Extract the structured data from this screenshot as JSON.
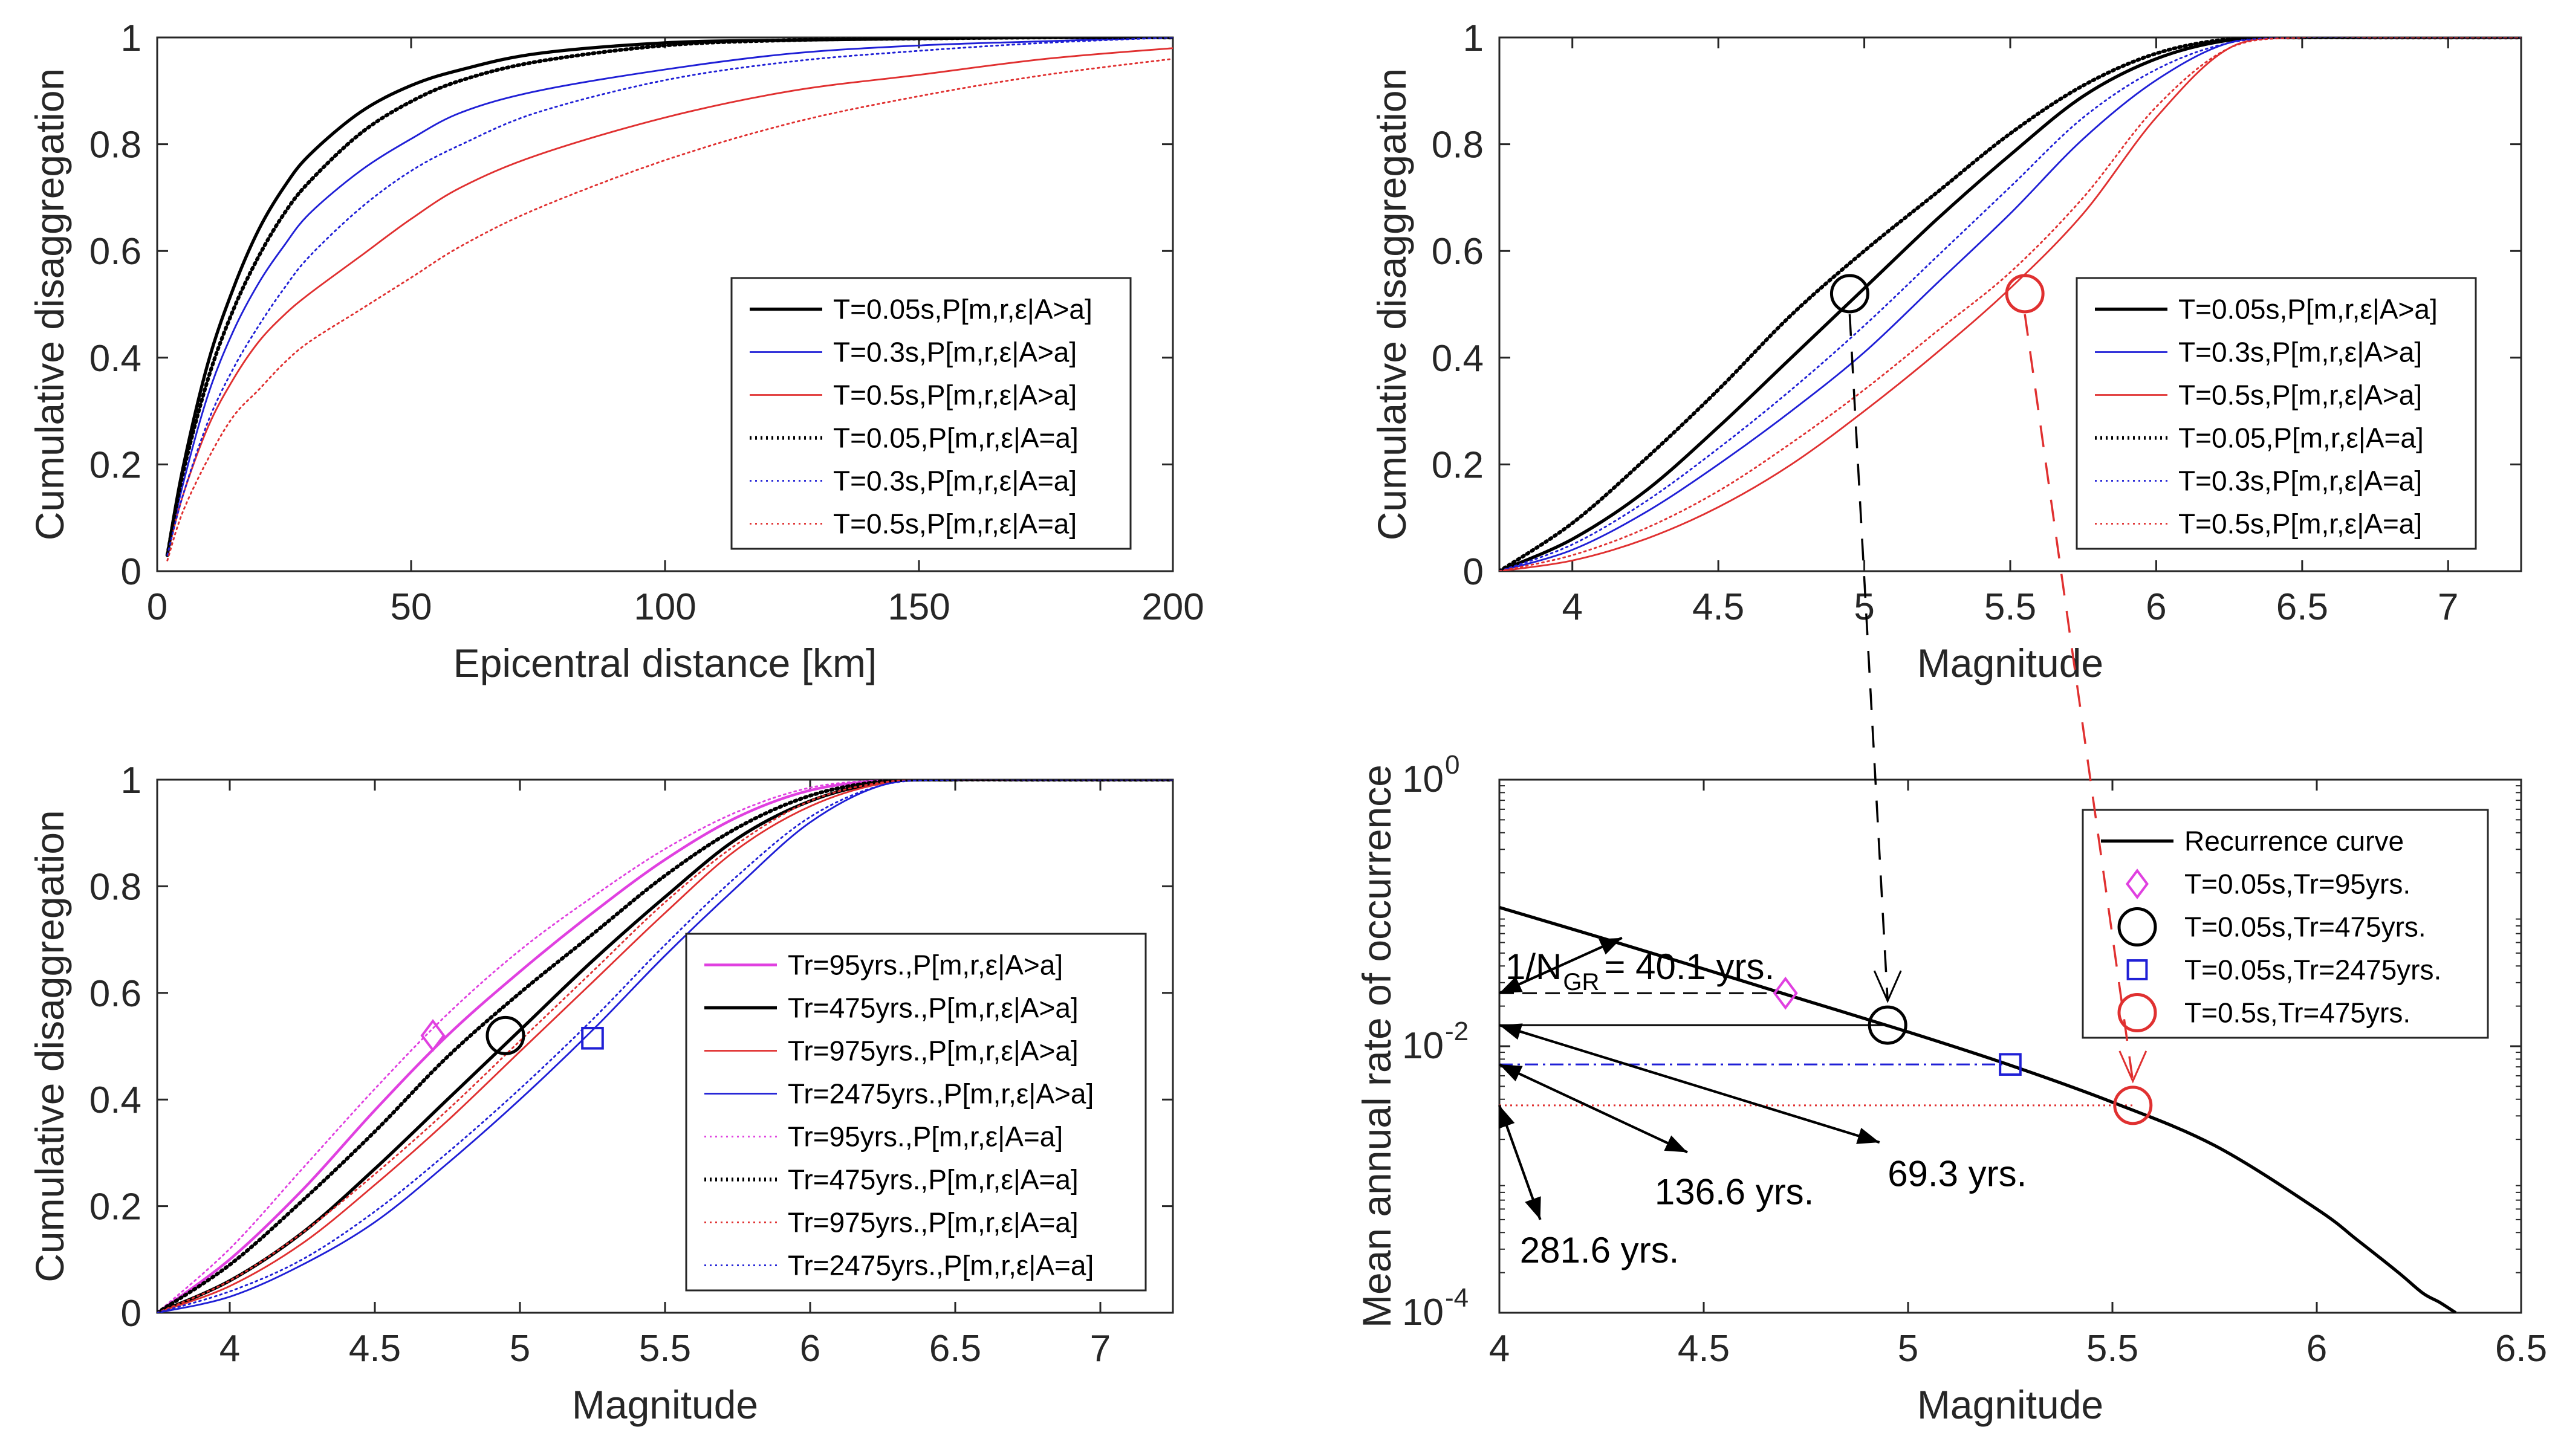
{
  "colors": {
    "black": "#000000",
    "blue": "#1f1fd6",
    "red": "#e03030",
    "magenta": "#e040e0",
    "grid": "#ffffff"
  },
  "chart_data": [
    {
      "type": "line",
      "xlabel": "Epicentral distance [km]",
      "ylabel": "Cumulative disaggregation",
      "xlim": [
        0,
        200
      ],
      "ylim": [
        0,
        1
      ],
      "xticks": [
        "0",
        "50",
        "100",
        "150",
        "200"
      ],
      "yticks": [
        "0",
        "0.2",
        "0.4",
        "0.6",
        "0.8",
        "1"
      ],
      "legend_position": "center-right",
      "x": [
        2,
        5,
        10,
        15,
        20,
        25,
        30,
        40,
        50,
        60,
        75,
        100,
        125,
        150,
        175,
        200
      ],
      "series": [
        {
          "name": "T=0.05s,P[m,r,ε|A>a]",
          "color": "#000000",
          "style": "solid",
          "width": 2.4,
          "values": [
            0.03,
            0.19,
            0.39,
            0.53,
            0.64,
            0.72,
            0.78,
            0.86,
            0.91,
            0.94,
            0.97,
            0.99,
            0.995,
            0.998,
            1.0,
            1.0
          ]
        },
        {
          "name": "T=0.3s,P[m,r,ε|A>a]",
          "color": "#1f1fd6",
          "style": "solid",
          "width": 1.3,
          "values": [
            0.03,
            0.16,
            0.33,
            0.45,
            0.54,
            0.61,
            0.67,
            0.75,
            0.81,
            0.86,
            0.9,
            0.94,
            0.97,
            0.985,
            0.993,
            1.0
          ]
        },
        {
          "name": "T=0.5s,P[m,r,ε|A>a]",
          "color": "#e03030",
          "style": "solid",
          "width": 1.3,
          "values": [
            0.03,
            0.14,
            0.27,
            0.36,
            0.43,
            0.48,
            0.52,
            0.59,
            0.66,
            0.72,
            0.78,
            0.85,
            0.9,
            0.93,
            0.96,
            0.98
          ]
        },
        {
          "name": "T=0.05,P[m,r,ε|A=a]",
          "color": "#000000",
          "style": "dotted",
          "width": 2.8,
          "values": [
            0.03,
            0.18,
            0.36,
            0.49,
            0.59,
            0.67,
            0.73,
            0.82,
            0.88,
            0.92,
            0.955,
            0.985,
            0.995,
            0.998,
            1.0,
            1.0
          ]
        },
        {
          "name": "T=0.3s,P[m,r,ε|A=a]",
          "color": "#1f1fd6",
          "style": "dotted",
          "width": 1.3,
          "values": [
            0.03,
            0.14,
            0.28,
            0.38,
            0.46,
            0.53,
            0.59,
            0.68,
            0.75,
            0.8,
            0.86,
            0.92,
            0.955,
            0.975,
            0.99,
            1.0
          ]
        },
        {
          "name": "T=0.5s,P[m,r,ε|A=a]",
          "color": "#e03030",
          "style": "dotted",
          "width": 1.3,
          "values": [
            0.02,
            0.11,
            0.21,
            0.29,
            0.34,
            0.39,
            0.43,
            0.49,
            0.55,
            0.61,
            0.68,
            0.77,
            0.84,
            0.89,
            0.93,
            0.96
          ]
        }
      ]
    },
    {
      "type": "line",
      "xlabel": "Magnitude",
      "ylabel": "Cumulative disaggregation",
      "xlim": [
        3.75,
        7.25
      ],
      "ylim": [
        0,
        1
      ],
      "xticks": [
        "4",
        "4.5",
        "5",
        "5.5",
        "6",
        "6.5",
        "7"
      ],
      "yticks": [
        "0",
        "0.2",
        "0.4",
        "0.6",
        "0.8",
        "1"
      ],
      "legend_position": "center-right",
      "x": [
        3.75,
        4.0,
        4.25,
        4.5,
        4.75,
        5.0,
        5.25,
        5.5,
        5.75,
        6.0,
        6.25,
        6.5,
        6.75,
        7.0,
        7.25
      ],
      "series": [
        {
          "name": "T=0.05s,P[m,r,ε|A>a]",
          "color": "#000000",
          "style": "solid",
          "width": 2.4,
          "values": [
            0.0,
            0.06,
            0.15,
            0.27,
            0.4,
            0.53,
            0.66,
            0.78,
            0.89,
            0.96,
            0.995,
            1.0,
            1.0,
            1.0,
            1.0
          ]
        },
        {
          "name": "T=0.3s,P[m,r,ε|A>a]",
          "color": "#1f1fd6",
          "style": "solid",
          "width": 1.3,
          "values": [
            0.0,
            0.04,
            0.11,
            0.2,
            0.3,
            0.41,
            0.54,
            0.67,
            0.81,
            0.92,
            0.99,
            1.0,
            1.0,
            1.0,
            1.0
          ]
        },
        {
          "name": "T=0.5s,P[m,r,ε|A>a]",
          "color": "#e03030",
          "style": "solid",
          "width": 1.3,
          "values": [
            0.0,
            0.02,
            0.06,
            0.12,
            0.2,
            0.3,
            0.41,
            0.53,
            0.67,
            0.85,
            0.98,
            1.0,
            1.0,
            1.0,
            1.0
          ]
        },
        {
          "name": "T=0.05,P[m,r,ε|A=a]",
          "color": "#000000",
          "style": "dotted",
          "width": 2.8,
          "values": [
            0.0,
            0.09,
            0.21,
            0.34,
            0.48,
            0.6,
            0.71,
            0.82,
            0.91,
            0.97,
            0.997,
            1.0,
            1.0,
            1.0,
            1.0
          ]
        },
        {
          "name": "T=0.3s,P[m,r,ε|A=a]",
          "color": "#1f1fd6",
          "style": "dotted",
          "width": 1.3,
          "values": [
            0.0,
            0.05,
            0.13,
            0.23,
            0.34,
            0.46,
            0.59,
            0.72,
            0.85,
            0.94,
            0.99,
            1.0,
            1.0,
            1.0,
            1.0
          ]
        },
        {
          "name": "T=0.5s,P[m,r,ε|A=a]",
          "color": "#e03030",
          "style": "dotted",
          "width": 1.3,
          "values": [
            0.0,
            0.03,
            0.08,
            0.15,
            0.24,
            0.34,
            0.45,
            0.56,
            0.7,
            0.87,
            0.98,
            1.0,
            1.0,
            1.0,
            1.0
          ]
        }
      ],
      "markers": [
        {
          "x": 4.95,
          "y": 0.52,
          "shape": "circle",
          "color": "#000000"
        },
        {
          "x": 5.55,
          "y": 0.52,
          "shape": "circle",
          "color": "#e03030"
        }
      ]
    },
    {
      "type": "line",
      "xlabel": "Magnitude",
      "ylabel": "Cumulative disaggregation",
      "xlim": [
        3.75,
        7.25
      ],
      "ylim": [
        0,
        1
      ],
      "xticks": [
        "4",
        "4.5",
        "5",
        "5.5",
        "6",
        "6.5",
        "7"
      ],
      "yticks": [
        "0",
        "0.2",
        "0.4",
        "0.6",
        "0.8",
        "1"
      ],
      "legend_position": "center-right",
      "x": [
        3.75,
        4.0,
        4.25,
        4.5,
        4.75,
        5.0,
        5.25,
        5.5,
        5.75,
        6.0,
        6.25,
        6.5,
        6.75,
        7.0,
        7.25
      ],
      "series": [
        {
          "name": "Tr=95yrs.,P[m,r,ε|A>a]",
          "color": "#e040e0",
          "style": "solid",
          "width": 2.0,
          "values": [
            0.0,
            0.1,
            0.23,
            0.38,
            0.52,
            0.64,
            0.75,
            0.85,
            0.93,
            0.98,
            0.998,
            1.0,
            1.0,
            1.0,
            1.0
          ]
        },
        {
          "name": "Tr=475yrs.,P[m,r,ε|A>a]",
          "color": "#000000",
          "style": "solid",
          "width": 2.4,
          "values": [
            0.0,
            0.06,
            0.15,
            0.27,
            0.4,
            0.53,
            0.66,
            0.78,
            0.89,
            0.96,
            0.995,
            1.0,
            1.0,
            1.0,
            1.0
          ]
        },
        {
          "name": "Tr=975yrs.,P[m,r,ε|A>a]",
          "color": "#e03030",
          "style": "solid",
          "width": 1.3,
          "values": [
            0.0,
            0.05,
            0.13,
            0.24,
            0.36,
            0.49,
            0.62,
            0.75,
            0.87,
            0.95,
            0.993,
            1.0,
            1.0,
            1.0,
            1.0
          ]
        },
        {
          "name": "Tr=2475yrs.,P[m,r,ε|A>a]",
          "color": "#1f1fd6",
          "style": "solid",
          "width": 1.3,
          "values": [
            0.0,
            0.03,
            0.09,
            0.17,
            0.28,
            0.4,
            0.53,
            0.67,
            0.8,
            0.92,
            0.99,
            1.0,
            1.0,
            1.0,
            1.0
          ]
        },
        {
          "name": "Tr=95yrs.,P[m,r,ε|A=a]",
          "color": "#e040e0",
          "style": "dotted",
          "width": 1.3,
          "values": [
            0.0,
            0.12,
            0.27,
            0.42,
            0.56,
            0.68,
            0.78,
            0.87,
            0.94,
            0.985,
            0.999,
            1.0,
            1.0,
            1.0,
            1.0
          ]
        },
        {
          "name": "Tr=475yrs.,P[m,r,ε|A=a]",
          "color": "#000000",
          "style": "dotted",
          "width": 2.8,
          "values": [
            0.0,
            0.09,
            0.21,
            0.34,
            0.48,
            0.6,
            0.71,
            0.82,
            0.91,
            0.97,
            0.997,
            1.0,
            1.0,
            1.0,
            1.0
          ]
        },
        {
          "name": "Tr=975yrs.,P[m,r,ε|A=a]",
          "color": "#e03030",
          "style": "dotted",
          "width": 1.3,
          "values": [
            0.0,
            0.06,
            0.15,
            0.26,
            0.38,
            0.51,
            0.64,
            0.77,
            0.88,
            0.96,
            0.995,
            1.0,
            1.0,
            1.0,
            1.0
          ]
        },
        {
          "name": "Tr=2475yrs.,P[m,r,ε|A=a]",
          "color": "#1f1fd6",
          "style": "dotted",
          "width": 1.3,
          "values": [
            0.0,
            0.04,
            0.1,
            0.19,
            0.3,
            0.42,
            0.55,
            0.69,
            0.82,
            0.93,
            0.99,
            1.0,
            1.0,
            1.0,
            1.0
          ]
        }
      ],
      "markers": [
        {
          "x": 4.7,
          "y": 0.52,
          "shape": "diamond",
          "color": "#e040e0"
        },
        {
          "x": 4.95,
          "y": 0.52,
          "shape": "circle",
          "color": "#000000"
        },
        {
          "x": 5.25,
          "y": 0.515,
          "shape": "square",
          "color": "#1f1fd6"
        }
      ]
    },
    {
      "type": "line",
      "xlabel": "Magnitude",
      "ylabel": "Mean annual rate of occurrence",
      "xlim": [
        4,
        6.5
      ],
      "ylim": [
        0.0001,
        1
      ],
      "yscale": "log",
      "xticks": [
        "4",
        "4.5",
        "5",
        "5.5",
        "6",
        "6.5"
      ],
      "yticks": [
        {
          "base": "10",
          "exp": "-4"
        },
        {
          "base": "10",
          "exp": "-2"
        },
        {
          "base": "10",
          "exp": "0"
        }
      ],
      "legend_position": "top-right",
      "x": [
        4.0,
        4.25,
        4.5,
        4.75,
        5.0,
        5.25,
        5.5,
        5.75,
        6.0,
        6.1,
        6.2,
        6.26,
        6.3,
        6.34
      ],
      "series": [
        {
          "name": "Recurrence curve",
          "color": "#000000",
          "style": "solid",
          "width": 2.4,
          "values": [
            0.11,
            0.065,
            0.038,
            0.022,
            0.0128,
            0.0072,
            0.0038,
            0.0018,
            0.0006,
            0.00035,
            0.0002,
            0.00014,
            0.00012,
            0.0001
          ]
        }
      ],
      "markers": [
        {
          "name": "T=0.05s,Tr=95yrs.",
          "x": 4.7,
          "y": 0.025,
          "shape": "diamond",
          "color": "#e040e0"
        },
        {
          "name": "T=0.05s,Tr=475yrs.",
          "x": 4.95,
          "y": 0.0144,
          "shape": "circle",
          "color": "#000000"
        },
        {
          "name": "T=0.05s,Tr=2475yrs.",
          "x": 5.25,
          "y": 0.0073,
          "shape": "square",
          "color": "#1f1fd6"
        },
        {
          "name": "T=0.5s,Tr=475yrs.",
          "x": 5.55,
          "y": 0.0036,
          "shape": "circle",
          "color": "#e03030"
        }
      ],
      "hlines": [
        {
          "y": 0.025,
          "x_end": 4.7,
          "color": "#000000",
          "style": "dashed"
        },
        {
          "y": 0.0144,
          "x_end": 4.95,
          "color": "#000000",
          "style": "solid"
        },
        {
          "y": 0.0073,
          "x_end": 5.25,
          "color": "#1f1fd6",
          "style": "dashdot"
        },
        {
          "y": 0.0036,
          "x_end": 5.55,
          "color": "#e03030",
          "style": "dotted"
        }
      ],
      "annotations": [
        {
          "text_main": "1/N",
          "text_sub": "GR",
          "text_rest": "= 40.1 yrs.",
          "x": 4.0,
          "y": 0.04,
          "arrow_from": {
            "x": 4.3,
            "y": 0.065
          },
          "arrow_to": {
            "x": 4.0,
            "y": 0.025
          }
        },
        {
          "text": "69.3 yrs.",
          "x": 4.95,
          "y": 0.0015,
          "arrow_from": {
            "x": 4.0,
            "y": 0.0144
          },
          "arrow_to": {
            "x": 4.93,
            "y": 0.0019
          }
        },
        {
          "text": "136.6 yrs.",
          "x": 4.38,
          "y": 0.0011,
          "arrow_from": {
            "x": 4.0,
            "y": 0.0073
          },
          "arrow_to": {
            "x": 4.46,
            "y": 0.0016
          }
        },
        {
          "text": "281.6 yrs.",
          "x": 4.05,
          "y": 0.0004,
          "arrow_from": {
            "x": 4.0,
            "y": 0.0036
          },
          "arrow_to": {
            "x": 4.1,
            "y": 0.0005
          }
        }
      ]
    }
  ]
}
